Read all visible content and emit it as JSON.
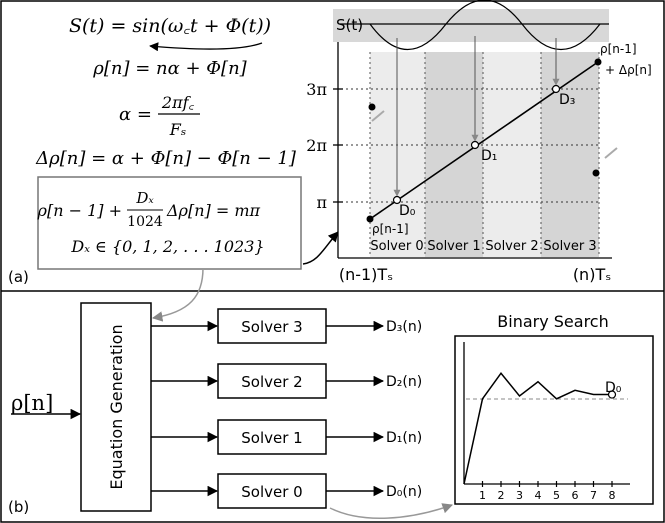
{
  "panel_a": {
    "label": "(a)",
    "equations": {
      "signal": "S(t) = sin(ω꜀t + Φ(t))",
      "phase": "ρ[n] = nα + Φ[n]",
      "alpha_lhs": "α =",
      "alpha_num": "2πf꜀",
      "alpha_den": "Fₛ",
      "delta": "Δρ[n] = α + Φ[n] − Φ[n − 1]",
      "box_line1_left": "ρ[n − 1] +",
      "box_frac_num": "Dₓ",
      "box_frac_den": "1024",
      "box_line1_right": "Δρ[n] = mπ",
      "box_line2": "Dₓ ∈ {0, 1, 2, . . . 1023}"
    },
    "plot": {
      "signal_label": "S(t)",
      "y_ticks": [
        "3π",
        "2π",
        "π"
      ],
      "x_start": "(n-1)Tₛ",
      "x_end": "(n)Tₛ",
      "solvers": [
        "Solver 0",
        "Solver 1",
        "Solver 2",
        "Solver 3"
      ],
      "points": [
        "D₀",
        "D₁",
        "D₃"
      ],
      "start_label": "ρ[n-1]",
      "end_label_1": "ρ[n-1]",
      "end_label_2": "+ Δρ[n]"
    }
  },
  "panel_b": {
    "label": "(b)",
    "input": "ρ[n]",
    "equation_generation": "Equation Generation",
    "solvers": [
      {
        "label": "Solver 3",
        "output": "D₃(n)"
      },
      {
        "label": "Solver 2",
        "output": "D₂(n)"
      },
      {
        "label": "Solver 1",
        "output": "D₁(n)"
      },
      {
        "label": "Solver 0",
        "output": "D₀(n)"
      }
    ],
    "binary_search": {
      "title": "Binary Search",
      "x_ticks": [
        "1",
        "2",
        "3",
        "4",
        "5",
        "6",
        "7",
        "8"
      ],
      "end_label": "D₀",
      "y_values": [
        0.6,
        0.78,
        0.62,
        0.72,
        0.6,
        0.66,
        0.63,
        0.63
      ]
    }
  }
}
